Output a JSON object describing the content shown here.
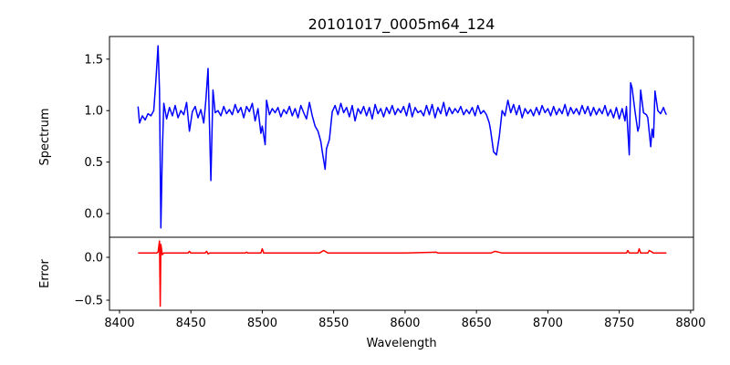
{
  "chart_data": [
    {
      "type": "line",
      "title": "20101017_0005m64_124",
      "ylabel": "Spectrum",
      "xlabel": "",
      "xlim": [
        8393,
        8802
      ],
      "ylim": [
        -0.23,
        1.72
      ],
      "xticks": [
        8400,
        8450,
        8500,
        8550,
        8600,
        8650,
        8700,
        8750,
        8800
      ],
      "yticks": [
        0.0,
        0.5,
        1.0,
        1.5
      ],
      "ytick_labels": [
        "0.0",
        "0.5",
        "1.0",
        "1.5"
      ],
      "series": [
        {
          "name": "Spectrum",
          "color": "#0000ff",
          "points": [
            [
              8413,
              1.04
            ],
            [
              8414,
              0.88
            ],
            [
              8416,
              0.95
            ],
            [
              8418,
              0.91
            ],
            [
              8420,
              0.97
            ],
            [
              8422,
              0.95
            ],
            [
              8424,
              1.0
            ],
            [
              8425.5,
              1.3
            ],
            [
              8427,
              1.63
            ],
            [
              8428,
              1.2
            ],
            [
              8429,
              -0.14
            ],
            [
              8430,
              0.6
            ],
            [
              8431,
              1.07
            ],
            [
              8433,
              0.92
            ],
            [
              8435,
              1.03
            ],
            [
              8437,
              0.95
            ],
            [
              8439,
              1.05
            ],
            [
              8441,
              0.93
            ],
            [
              8443,
              1.0
            ],
            [
              8445,
              0.96
            ],
            [
              8447,
              1.08
            ],
            [
              8449,
              0.8
            ],
            [
              8451,
              0.99
            ],
            [
              8453,
              1.04
            ],
            [
              8455,
              0.93
            ],
            [
              8457,
              1.01
            ],
            [
              8459,
              0.88
            ],
            [
              8460.5,
              1.1
            ],
            [
              8462,
              1.41
            ],
            [
              8464,
              0.32
            ],
            [
              8465.5,
              1.2
            ],
            [
              8467,
              0.98
            ],
            [
              8469,
              1.0
            ],
            [
              8471,
              0.95
            ],
            [
              8473,
              1.04
            ],
            [
              8475,
              0.97
            ],
            [
              8477,
              1.01
            ],
            [
              8479,
              0.96
            ],
            [
              8481,
              1.06
            ],
            [
              8483,
              0.98
            ],
            [
              8485,
              1.03
            ],
            [
              8487,
              0.93
            ],
            [
              8489,
              1.04
            ],
            [
              8491,
              0.99
            ],
            [
              8493,
              1.07
            ],
            [
              8495,
              0.9
            ],
            [
              8497,
              1.02
            ],
            [
              8499,
              0.78
            ],
            [
              8500,
              0.85
            ],
            [
              8502,
              0.67
            ],
            [
              8503,
              1.1
            ],
            [
              8505,
              0.96
            ],
            [
              8507,
              1.02
            ],
            [
              8509,
              0.98
            ],
            [
              8511,
              1.03
            ],
            [
              8513,
              0.94
            ],
            [
              8515,
              1.01
            ],
            [
              8517,
              0.97
            ],
            [
              8519,
              1.04
            ],
            [
              8521,
              0.95
            ],
            [
              8523,
              1.02
            ],
            [
              8525,
              0.93
            ],
            [
              8527,
              1.05
            ],
            [
              8529,
              0.98
            ],
            [
              8531,
              0.92
            ],
            [
              8533,
              1.08
            ],
            [
              8535,
              0.95
            ],
            [
              8537,
              0.85
            ],
            [
              8539,
              0.8
            ],
            [
              8541,
              0.7
            ],
            [
              8542,
              0.6
            ],
            [
              8544,
              0.43
            ],
            [
              8545,
              0.63
            ],
            [
              8547,
              0.72
            ],
            [
              8549,
              0.99
            ],
            [
              8551,
              1.05
            ],
            [
              8553,
              0.96
            ],
            [
              8555,
              1.07
            ],
            [
              8557,
              0.98
            ],
            [
              8559,
              1.03
            ],
            [
              8561,
              0.94
            ],
            [
              8563,
              1.05
            ],
            [
              8565,
              0.9
            ],
            [
              8567,
              1.02
            ],
            [
              8569,
              0.97
            ],
            [
              8571,
              1.04
            ],
            [
              8573,
              0.95
            ],
            [
              8575,
              1.03
            ],
            [
              8577,
              0.92
            ],
            [
              8579,
              1.06
            ],
            [
              8581,
              0.97
            ],
            [
              8583,
              1.02
            ],
            [
              8585,
              0.94
            ],
            [
              8587,
              1.03
            ],
            [
              8589,
              0.97
            ],
            [
              8591,
              1.05
            ],
            [
              8593,
              0.96
            ],
            [
              8595,
              1.02
            ],
            [
              8597,
              0.98
            ],
            [
              8599,
              1.04
            ],
            [
              8601,
              0.95
            ],
            [
              8603,
              1.07
            ],
            [
              8605,
              0.94
            ],
            [
              8607,
              1.03
            ],
            [
              8609,
              0.98
            ],
            [
              8611,
              1.0
            ],
            [
              8613,
              0.95
            ],
            [
              8615,
              1.05
            ],
            [
              8617,
              0.96
            ],
            [
              8619,
              1.06
            ],
            [
              8621,
              0.93
            ],
            [
              8623,
              1.03
            ],
            [
              8625,
              0.97
            ],
            [
              8627,
              1.08
            ],
            [
              8629,
              0.95
            ],
            [
              8631,
              1.03
            ],
            [
              8633,
              0.97
            ],
            [
              8635,
              1.02
            ],
            [
              8637,
              0.98
            ],
            [
              8639,
              1.04
            ],
            [
              8641,
              0.96
            ],
            [
              8643,
              1.01
            ],
            [
              8645,
              0.97
            ],
            [
              8647,
              1.03
            ],
            [
              8649,
              0.95
            ],
            [
              8651,
              1.05
            ],
            [
              8653,
              0.97
            ],
            [
              8655,
              1.0
            ],
            [
              8657,
              0.96
            ],
            [
              8659,
              0.88
            ],
            [
              8660,
              0.8
            ],
            [
              8662,
              0.6
            ],
            [
              8664,
              0.57
            ],
            [
              8666,
              0.75
            ],
            [
              8668,
              1.0
            ],
            [
              8670,
              0.95
            ],
            [
              8672,
              1.1
            ],
            [
              8674,
              0.98
            ],
            [
              8676,
              1.06
            ],
            [
              8678,
              0.96
            ],
            [
              8680,
              1.05
            ],
            [
              8682,
              0.93
            ],
            [
              8684,
              1.02
            ],
            [
              8686,
              0.97
            ],
            [
              8688,
              1.01
            ],
            [
              8690,
              0.95
            ],
            [
              8692,
              1.03
            ],
            [
              8694,
              0.96
            ],
            [
              8696,
              1.05
            ],
            [
              8698,
              0.98
            ],
            [
              8700,
              1.02
            ],
            [
              8702,
              0.95
            ],
            [
              8704,
              1.04
            ],
            [
              8706,
              0.96
            ],
            [
              8708,
              1.02
            ],
            [
              8710,
              0.97
            ],
            [
              8712,
              1.06
            ],
            [
              8714,
              0.95
            ],
            [
              8716,
              1.03
            ],
            [
              8718,
              0.97
            ],
            [
              8720,
              1.02
            ],
            [
              8722,
              0.96
            ],
            [
              8724,
              1.05
            ],
            [
              8726,
              0.97
            ],
            [
              8728,
              1.04
            ],
            [
              8730,
              0.95
            ],
            [
              8732,
              1.03
            ],
            [
              8734,
              0.96
            ],
            [
              8736,
              1.02
            ],
            [
              8738,
              0.97
            ],
            [
              8740,
              1.05
            ],
            [
              8742,
              0.95
            ],
            [
              8744,
              1.01
            ],
            [
              8746,
              0.93
            ],
            [
              8748,
              1.03
            ],
            [
              8750,
              0.92
            ],
            [
              8752,
              1.02
            ],
            [
              8754,
              0.9
            ],
            [
              8755,
              1.04
            ],
            [
              8757,
              0.57
            ],
            [
              8758,
              1.27
            ],
            [
              8759,
              1.22
            ],
            [
              8761,
              1.0
            ],
            [
              8763,
              0.8
            ],
            [
              8764,
              0.85
            ],
            [
              8765,
              1.2
            ],
            [
              8767,
              0.98
            ],
            [
              8769,
              0.96
            ],
            [
              8770,
              0.93
            ],
            [
              8772,
              0.65
            ],
            [
              8773,
              0.82
            ],
            [
              8774,
              0.74
            ],
            [
              8775,
              1.19
            ],
            [
              8777,
              1.0
            ],
            [
              8779,
              0.97
            ],
            [
              8781,
              1.03
            ],
            [
              8782,
              0.99
            ],
            [
              8783,
              0.96
            ]
          ]
        }
      ]
    },
    {
      "type": "line",
      "title": "",
      "ylabel": "Error",
      "xlabel": "Wavelength",
      "xlim": [
        8393,
        8802
      ],
      "ylim": [
        -0.617,
        0.234
      ],
      "xticks": [
        8400,
        8450,
        8500,
        8550,
        8600,
        8650,
        8700,
        8750,
        8800
      ],
      "xtick_labels": [
        "8400",
        "8450",
        "8500",
        "8550",
        "8600",
        "8650",
        "8700",
        "8750",
        "8800"
      ],
      "yticks": [
        -0.5,
        0.0
      ],
      "ytick_labels": [
        "−0.5",
        "0.0"
      ],
      "series": [
        {
          "name": "Error",
          "color": "#ff0000",
          "points": [
            [
              8413,
              0.05
            ],
            [
              8423,
              0.05
            ],
            [
              8426,
              0.05
            ],
            [
              8427,
              0.06
            ],
            [
              8428,
              0.19
            ],
            [
              8428.5,
              -0.57
            ],
            [
              8429,
              0.15
            ],
            [
              8430,
              0.03
            ],
            [
              8431,
              0.05
            ],
            [
              8448,
              0.05
            ],
            [
              8449,
              0.07
            ],
            [
              8450,
              0.05
            ],
            [
              8460,
              0.05
            ],
            [
              8461,
              0.07
            ],
            [
              8462,
              0.04
            ],
            [
              8463,
              0.05
            ],
            [
              8488,
              0.05
            ],
            [
              8489,
              0.06
            ],
            [
              8490,
              0.05
            ],
            [
              8499,
              0.05
            ],
            [
              8500,
              0.1
            ],
            [
              8501,
              0.05
            ],
            [
              8540,
              0.05
            ],
            [
              8543,
              0.08
            ],
            [
              8546,
              0.05
            ],
            [
              8600,
              0.05
            ],
            [
              8622,
              0.06
            ],
            [
              8623,
              0.05
            ],
            [
              8660,
              0.05
            ],
            [
              8663,
              0.07
            ],
            [
              8668,
              0.05
            ],
            [
              8755,
              0.05
            ],
            [
              8756,
              0.08
            ],
            [
              8757,
              0.05
            ],
            [
              8763,
              0.05
            ],
            [
              8764,
              0.1
            ],
            [
              8765,
              0.05
            ],
            [
              8770,
              0.05
            ],
            [
              8771,
              0.08
            ],
            [
              8772,
              0.07
            ],
            [
              8774,
              0.05
            ],
            [
              8783,
              0.05
            ]
          ]
        }
      ]
    }
  ]
}
